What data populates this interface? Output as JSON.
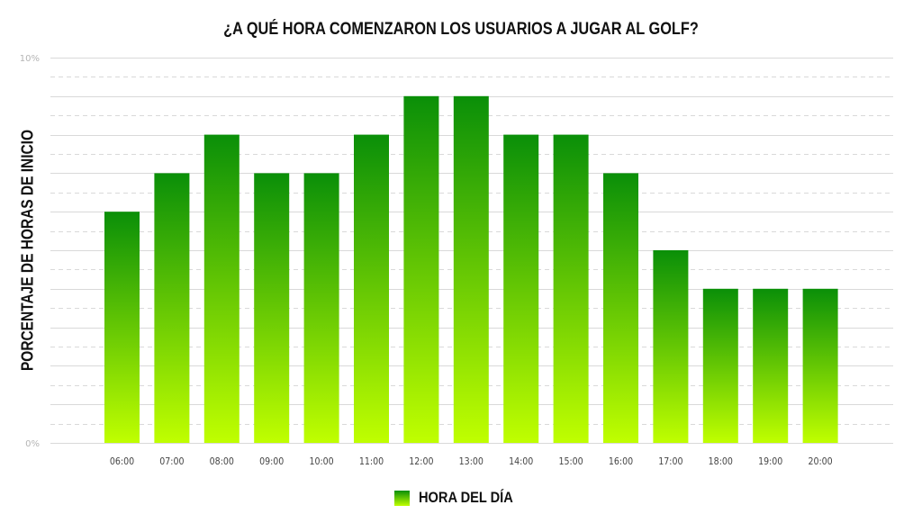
{
  "chart_data": {
    "type": "bar",
    "title": "¿A QUÉ HORA COMENZARON LOS USUARIOS A JUGAR AL GOLF?",
    "ylabel": "PORCENTAJE DE HORAS DE INICIO",
    "xlabel": "",
    "ylim": [
      0,
      10
    ],
    "y_ticks": [
      "0%",
      "10%"
    ],
    "grid": true,
    "legend_position": "bottom-center",
    "series": [
      {
        "name": "HORA DEL DÍA",
        "values": [
          6,
          7,
          8,
          7,
          7,
          8,
          9,
          9,
          8,
          8,
          7,
          5,
          4,
          4,
          4
        ]
      }
    ],
    "categories": [
      "06:00",
      "07:00",
      "08:00",
      "09:00",
      "10:00",
      "11:00",
      "12:00",
      "13:00",
      "14:00",
      "15:00",
      "16:00",
      "17:00",
      "18:00",
      "19:00",
      "20:00"
    ],
    "colors": {
      "bar_top": "#0a8f08",
      "bar_bottom": "#c0ff00",
      "grid": "#d9d9d9",
      "tick_y": "#b5b5b5"
    }
  }
}
